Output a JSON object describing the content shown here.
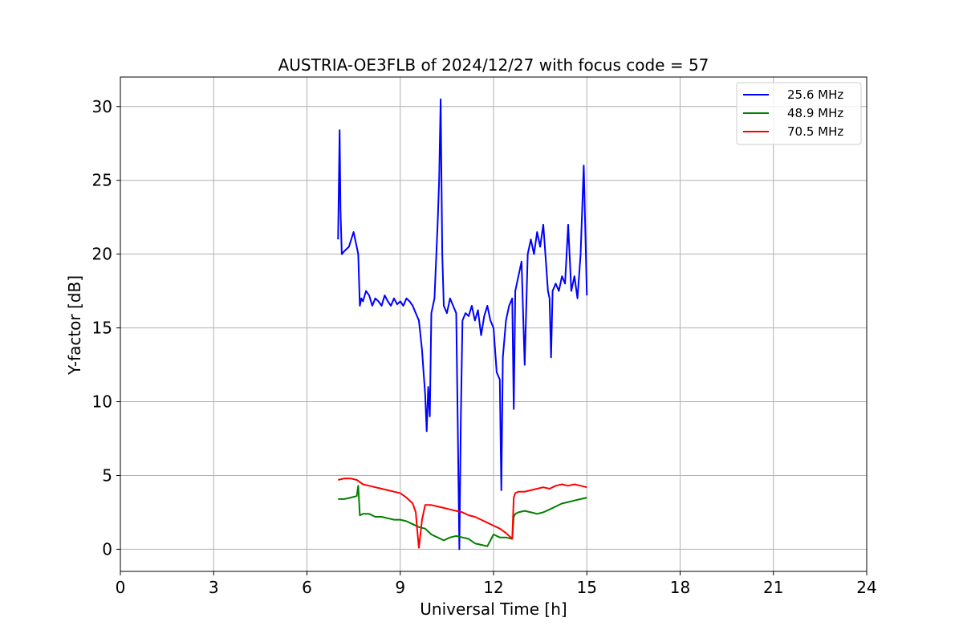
{
  "chart_data": {
    "type": "line",
    "title": "AUSTRIA-OE3FLB of 2024/12/27 with focus code = 57",
    "xlabel": "Universal Time [h]",
    "ylabel": "Y-factor [dB]",
    "xlim": [
      0,
      24
    ],
    "ylim": [
      -1.5,
      32
    ],
    "xticks": [
      0,
      3,
      6,
      9,
      12,
      15,
      18,
      21,
      24
    ],
    "yticks": [
      0,
      5,
      10,
      15,
      20,
      25,
      30
    ],
    "grid": true,
    "legend_position": "top-right",
    "series": [
      {
        "name": "25.6 MHz",
        "color": "#0000ff",
        "x": [
          7.0,
          7.05,
          7.08,
          7.12,
          7.2,
          7.35,
          7.5,
          7.6,
          7.65,
          7.7,
          7.75,
          7.8,
          7.9,
          8.0,
          8.1,
          8.2,
          8.3,
          8.4,
          8.5,
          8.6,
          8.7,
          8.8,
          8.9,
          9.0,
          9.1,
          9.2,
          9.3,
          9.4,
          9.5,
          9.6,
          9.7,
          9.75,
          9.8,
          9.85,
          9.9,
          9.95,
          10.0,
          10.1,
          10.2,
          10.25,
          10.3,
          10.35,
          10.4,
          10.5,
          10.6,
          10.7,
          10.8,
          10.85,
          10.9,
          10.95,
          11.0,
          11.1,
          11.2,
          11.3,
          11.4,
          11.5,
          11.6,
          11.7,
          11.8,
          11.9,
          12.0,
          12.1,
          12.2,
          12.25,
          12.3,
          12.4,
          12.5,
          12.6,
          12.65,
          12.7,
          12.8,
          12.9,
          13.0,
          13.1,
          13.2,
          13.3,
          13.4,
          13.5,
          13.6,
          13.7,
          13.75,
          13.8,
          13.85,
          13.9,
          14.0,
          14.1,
          14.2,
          14.3,
          14.4,
          14.5,
          14.6,
          14.7,
          14.8,
          14.9,
          15.0
        ],
        "y": [
          21.0,
          28.4,
          23.0,
          20.0,
          20.2,
          20.5,
          21.5,
          20.5,
          20.0,
          16.5,
          17.0,
          16.8,
          17.5,
          17.2,
          16.5,
          17.0,
          16.8,
          16.5,
          17.2,
          16.8,
          16.5,
          17.0,
          16.6,
          16.8,
          16.5,
          17.0,
          16.8,
          16.5,
          16.0,
          15.5,
          13.5,
          12.0,
          10.5,
          8.0,
          11.0,
          9.0,
          16.0,
          17.0,
          22.0,
          25.0,
          30.5,
          20.0,
          16.5,
          16.0,
          17.0,
          16.5,
          16.0,
          8.5,
          0.0,
          9.0,
          15.5,
          16.0,
          15.8,
          16.5,
          15.5,
          16.2,
          14.5,
          15.8,
          16.5,
          15.5,
          15.0,
          12.0,
          11.5,
          4.0,
          13.0,
          15.5,
          16.5,
          17.0,
          9.5,
          17.5,
          18.5,
          19.5,
          12.5,
          20.0,
          21.0,
          20.0,
          21.5,
          20.5,
          22.0,
          19.0,
          17.5,
          17.0,
          13.0,
          17.5,
          18.0,
          17.5,
          18.5,
          18.0,
          22.0,
          17.5,
          18.5,
          17.0,
          20.0,
          26.0,
          17.2
        ]
      },
      {
        "name": "48.9 MHz",
        "color": "#008000",
        "x": [
          7.0,
          7.2,
          7.4,
          7.6,
          7.65,
          7.7,
          7.8,
          8.0,
          8.2,
          8.4,
          8.6,
          8.8,
          9.0,
          9.2,
          9.4,
          9.6,
          9.8,
          10.0,
          10.2,
          10.4,
          10.6,
          10.8,
          11.0,
          11.2,
          11.4,
          11.6,
          11.8,
          12.0,
          12.2,
          12.4,
          12.6,
          12.65,
          12.7,
          12.8,
          13.0,
          13.2,
          13.4,
          13.6,
          13.8,
          14.0,
          14.2,
          14.4,
          14.6,
          14.8,
          15.0
        ],
        "y": [
          3.4,
          3.4,
          3.5,
          3.6,
          4.3,
          2.3,
          2.4,
          2.4,
          2.2,
          2.2,
          2.1,
          2.0,
          2.0,
          1.9,
          1.7,
          1.5,
          1.4,
          1.0,
          0.8,
          0.6,
          0.8,
          0.9,
          0.8,
          0.7,
          0.4,
          0.3,
          0.2,
          1.0,
          0.8,
          0.8,
          0.7,
          2.2,
          2.4,
          2.5,
          2.6,
          2.5,
          2.4,
          2.5,
          2.7,
          2.9,
          3.1,
          3.2,
          3.3,
          3.4,
          3.5
        ]
      },
      {
        "name": "70.5 MHz",
        "color": "#ff0000",
        "x": [
          7.0,
          7.2,
          7.4,
          7.6,
          7.8,
          8.0,
          8.2,
          8.4,
          8.6,
          8.8,
          9.0,
          9.2,
          9.4,
          9.5,
          9.55,
          9.6,
          9.65,
          9.7,
          9.8,
          10.0,
          10.2,
          10.4,
          10.6,
          10.8,
          11.0,
          11.2,
          11.4,
          11.6,
          11.8,
          12.0,
          12.2,
          12.4,
          12.6,
          12.65,
          12.7,
          12.8,
          13.0,
          13.2,
          13.4,
          13.6,
          13.8,
          14.0,
          14.2,
          14.4,
          14.6,
          14.8,
          15.0
        ],
        "y": [
          4.7,
          4.8,
          4.8,
          4.7,
          4.4,
          4.3,
          4.2,
          4.1,
          4.0,
          3.9,
          3.8,
          3.5,
          3.1,
          2.5,
          1.2,
          0.1,
          1.0,
          2.0,
          3.0,
          3.0,
          2.9,
          2.8,
          2.7,
          2.6,
          2.5,
          2.3,
          2.2,
          2.0,
          1.8,
          1.6,
          1.4,
          1.1,
          0.7,
          3.5,
          3.8,
          3.9,
          3.9,
          4.0,
          4.1,
          4.2,
          4.1,
          4.3,
          4.4,
          4.3,
          4.4,
          4.3,
          4.2
        ]
      }
    ]
  }
}
